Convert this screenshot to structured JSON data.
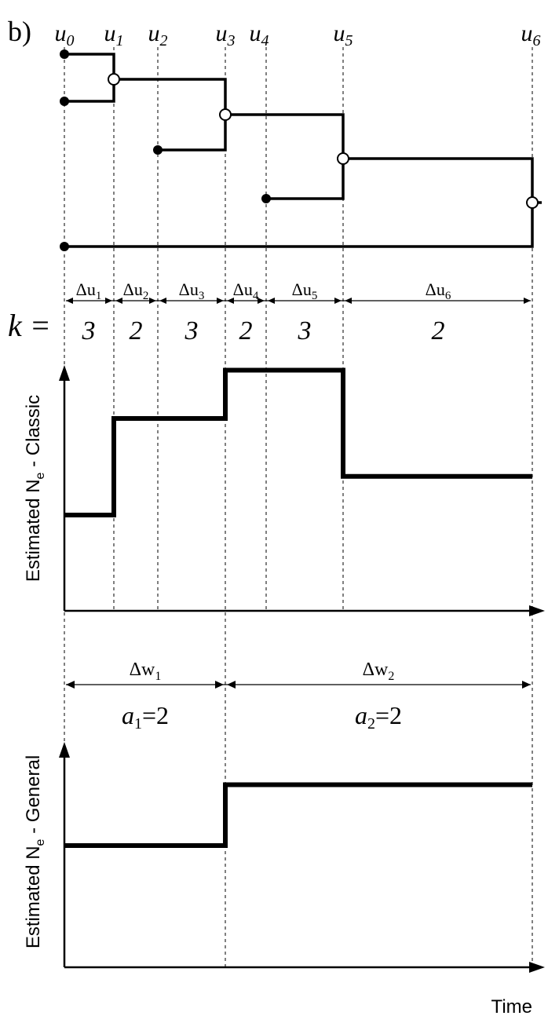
{
  "panel_label": "b)",
  "times": [
    {
      "name": "u",
      "sub": "0"
    },
    {
      "name": "u",
      "sub": "1"
    },
    {
      "name": "u",
      "sub": "2"
    },
    {
      "name": "u",
      "sub": "3"
    },
    {
      "name": "u",
      "sub": "4"
    },
    {
      "name": "u",
      "sub": "5"
    },
    {
      "name": "u",
      "sub": "6"
    }
  ],
  "intervals": [
    {
      "name": "Δu",
      "sub": "1",
      "k": "3"
    },
    {
      "name": "Δu",
      "sub": "2",
      "k": "2"
    },
    {
      "name": "Δu",
      "sub": "3",
      "k": "3"
    },
    {
      "name": "Δu",
      "sub": "4",
      "k": "2"
    },
    {
      "name": "Δu",
      "sub": "5",
      "k": "3"
    },
    {
      "name": "Δu",
      "sub": "6",
      "k": "2"
    }
  ],
  "k_label": "k =",
  "classic": {
    "ylabel_main": "Estimated N",
    "ylabel_sub": "e",
    "ylabel_rest": " - Classic",
    "levels": [
      1.0,
      2.0,
      2.0,
      2.5,
      2.5,
      1.4
    ]
  },
  "groups": [
    {
      "name": "Δw",
      "sub": "1",
      "a_name": "a",
      "a_sub": "1",
      "a_value": "=2"
    },
    {
      "name": "Δw",
      "sub": "2",
      "a_name": "a",
      "a_sub": "2",
      "a_value": "=2"
    }
  ],
  "general": {
    "ylabel_main": "Estimated N",
    "ylabel_sub": "e",
    "ylabel_rest": " - General",
    "levels": [
      1.0,
      1.5
    ]
  },
  "time_label": "Time"
}
